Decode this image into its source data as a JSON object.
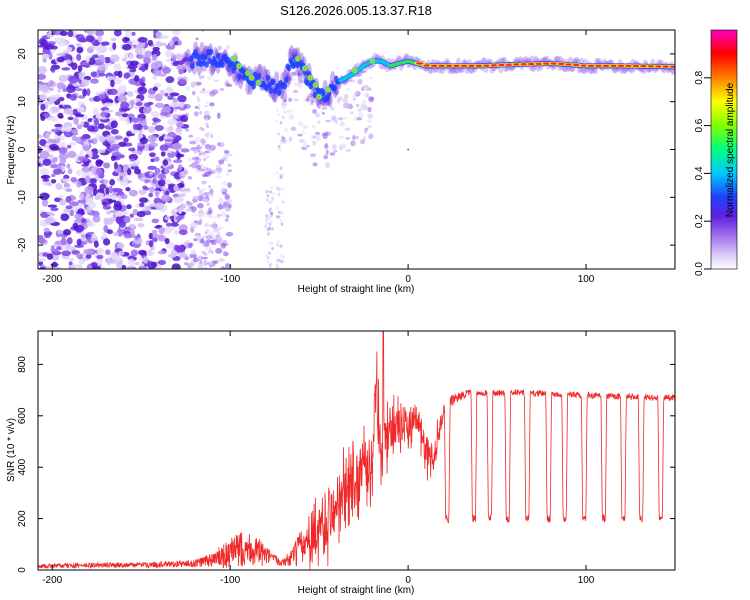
{
  "title": "S126.2026.005.13.37.R18",
  "chart_data": [
    {
      "type": "heatmap",
      "name": "spectrogram",
      "xlabel": "Height of straight line (km)",
      "ylabel": "Frequency (Hz)",
      "xlim": [
        -208,
        150
      ],
      "ylim": [
        -25,
        25
      ],
      "xticks": [
        -200,
        -100,
        0,
        100
      ],
      "yticks": [
        -20,
        -10,
        0,
        10,
        20
      ],
      "ridge": {
        "description": "dominant frequency track versus height",
        "x": [
          -125,
          -110,
          -100,
          -90,
          -80,
          -70,
          -65,
          -60,
          -55,
          -50,
          -45,
          -40,
          -35,
          -30,
          -25,
          -20,
          -15,
          -10,
          -5,
          0,
          10,
          20,
          40,
          60,
          80,
          100,
          120,
          150
        ],
        "y": [
          19,
          19,
          18,
          15,
          14,
          13,
          19,
          17,
          14,
          11,
          12,
          14,
          15,
          16,
          17.5,
          18.5,
          18.5,
          17.5,
          18,
          18.5,
          17.5,
          17.5,
          17.5,
          17.8,
          18,
          17.5,
          17.5,
          17.3
        ]
      },
      "colorbar": {
        "label": "Normalized spectral amplitude",
        "range": [
          0.0,
          1.0
        ],
        "ticks": [
          0.0,
          0.2,
          0.4,
          0.6,
          0.8
        ],
        "tick_labels": [
          "0.0",
          "0.2",
          "0.4",
          "0.6",
          "0.8"
        ],
        "colors": [
          "#ffffff",
          "#d8c8f8",
          "#a070f0",
          "#6020e0",
          "#2040ff",
          "#00c8ff",
          "#00ff80",
          "#80ff00",
          "#ffff00",
          "#ff8000",
          "#ff0000",
          "#ff00c0"
        ]
      }
    },
    {
      "type": "line",
      "name": "snr",
      "xlabel": "Height of straight line (km)",
      "ylabel": "SNR (10 * v/v)",
      "xlim": [
        -208,
        150
      ],
      "ylim": [
        0,
        930
      ],
      "xticks": [
        -200,
        -100,
        0,
        100
      ],
      "yticks": [
        0,
        200,
        400,
        600,
        800
      ],
      "color": "#f02828",
      "series": [
        {
          "name": "SNR",
          "x": [
            -208,
            -180,
            -150,
            -120,
            -110,
            -100,
            -95,
            -90,
            -85,
            -80,
            -75,
            -70,
            -65,
            -60,
            -55,
            -50,
            -45,
            -40,
            -35,
            -30,
            -25,
            -20,
            -18,
            -15,
            -10,
            -5,
            0,
            5,
            10,
            15,
            20,
            25,
            30,
            35,
            40,
            50,
            60,
            80,
            100,
            120,
            150
          ],
          "mean": [
            15,
            18,
            20,
            25,
            40,
            60,
            80,
            90,
            70,
            55,
            40,
            30,
            50,
            80,
            120,
            180,
            200,
            260,
            300,
            340,
            380,
            420,
            700,
            500,
            520,
            560,
            560,
            600,
            440,
            460,
            620,
            660,
            680,
            690,
            690,
            690,
            690,
            685,
            680,
            675,
            670
          ],
          "noise_amp": [
            8,
            10,
            10,
            15,
            30,
            60,
            70,
            70,
            60,
            40,
            20,
            15,
            40,
            80,
            110,
            130,
            140,
            150,
            150,
            150,
            150,
            160,
            200,
            140,
            130,
            110,
            80,
            60,
            80,
            70,
            40,
            25,
            15,
            12,
            12,
            12,
            12,
            12,
            12,
            12,
            12
          ],
          "dropouts": [
            {
              "x": 22,
              "y": 200
            },
            {
              "x": 37,
              "y": 200
            },
            {
              "x": 46,
              "y": 205
            },
            {
              "x": 56,
              "y": 200
            },
            {
              "x": 67,
              "y": 200
            },
            {
              "x": 79,
              "y": 200
            },
            {
              "x": 88,
              "y": 200
            },
            {
              "x": 99,
              "y": 200
            },
            {
              "x": 110,
              "y": 200
            },
            {
              "x": 121,
              "y": 200
            },
            {
              "x": 131,
              "y": 200
            },
            {
              "x": 142,
              "y": 195
            }
          ],
          "peak": {
            "x": -14,
            "y": 935
          }
        }
      ]
    }
  ]
}
